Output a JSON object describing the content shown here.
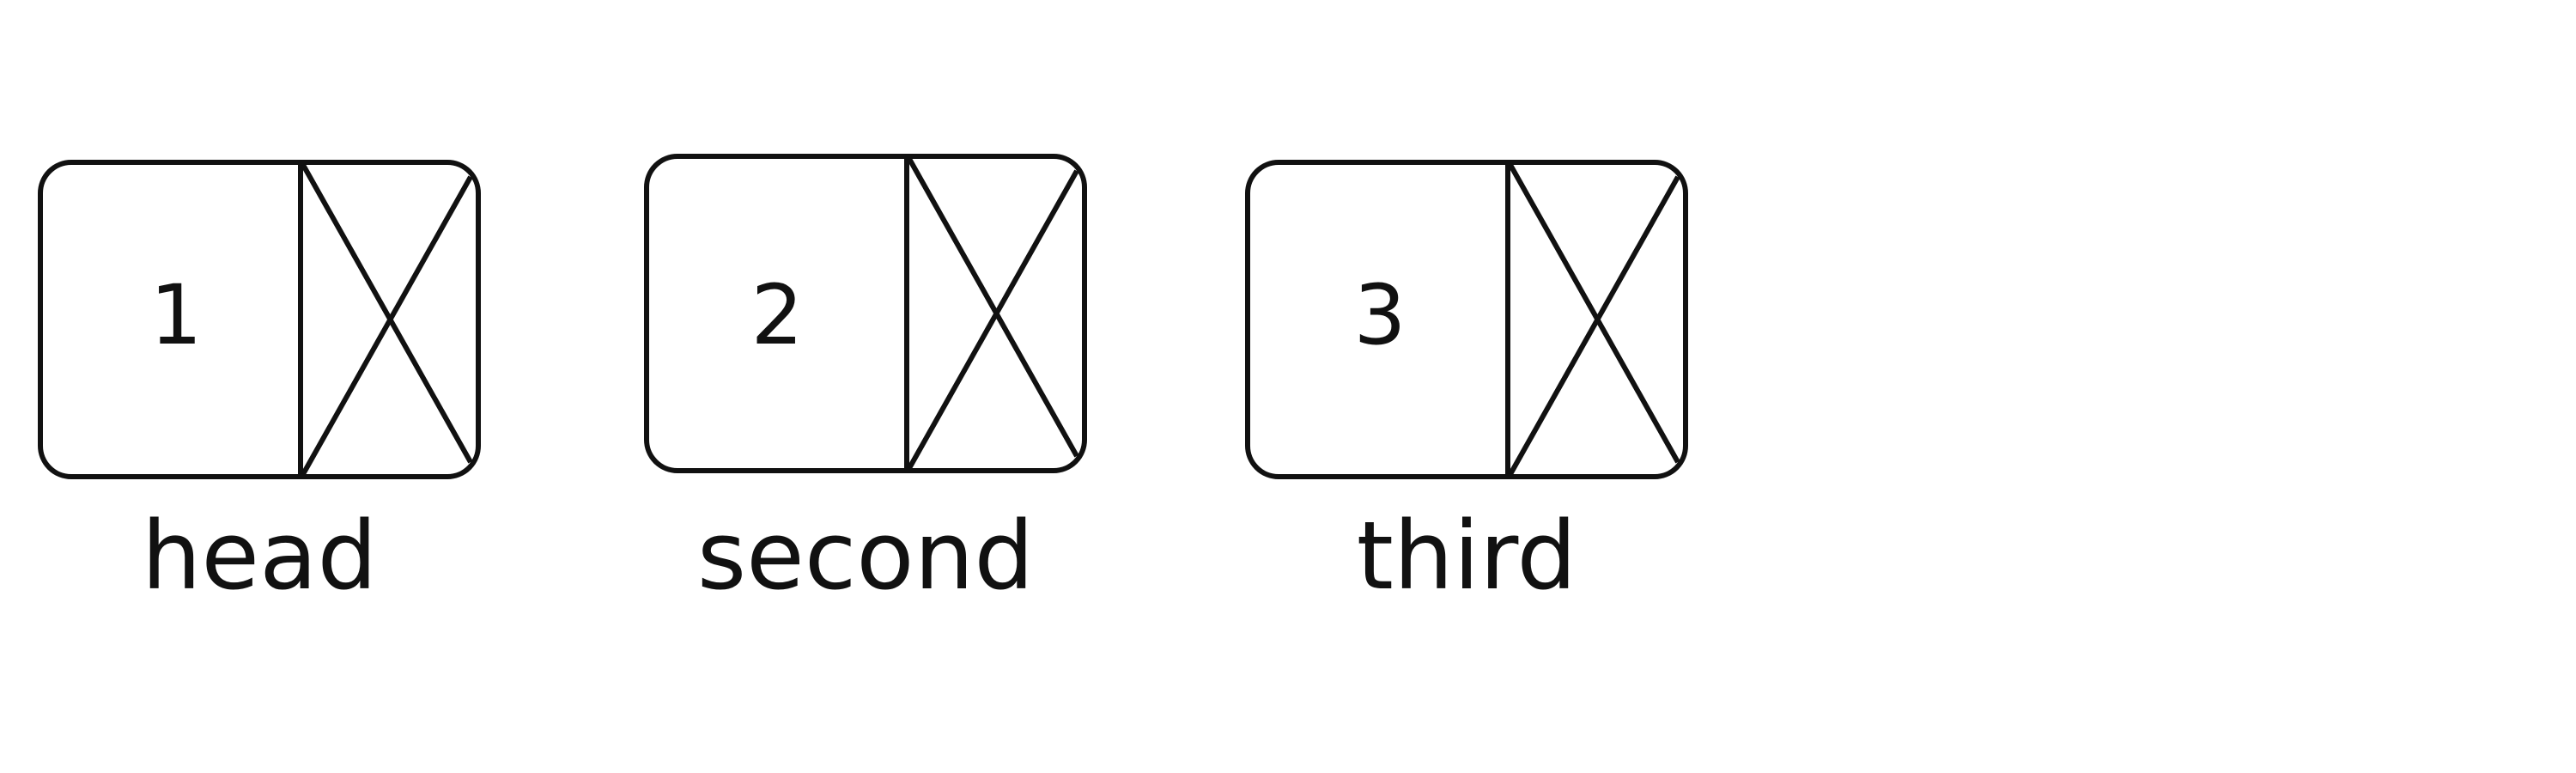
{
  "diagram": {
    "nodes": [
      {
        "value": "1",
        "label": "head",
        "next_pointer": "null"
      },
      {
        "value": "2",
        "label": "second",
        "next_pointer": "null"
      },
      {
        "value": "3",
        "label": "third",
        "next_pointer": "null"
      }
    ],
    "colors": {
      "stroke": "#111111",
      "background": "#ffffff"
    }
  }
}
